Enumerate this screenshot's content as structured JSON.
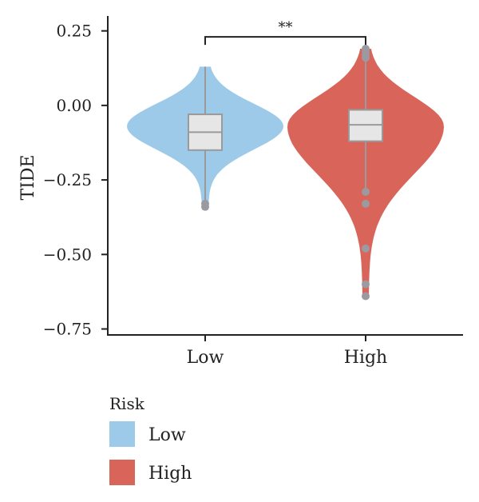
{
  "chart_data": {
    "type": "violin",
    "xlabel": "",
    "ylabel": "TIDE",
    "ylim": [
      -0.77,
      0.3
    ],
    "yticks": [
      0.25,
      0.0,
      -0.25,
      -0.5,
      -0.75
    ],
    "ytick_labels": [
      "0.25",
      "0.00",
      "−0.25",
      "−0.50",
      "−0.75"
    ],
    "categories": [
      "Low",
      "High"
    ],
    "groups": [
      {
        "name": "Low",
        "color": "#9ecae9",
        "box": {
          "q1": -0.15,
          "median": -0.09,
          "q3": -0.03,
          "whisker_low": -0.32,
          "whisker_high": 0.13
        },
        "outliers": [
          -0.33,
          -0.34
        ],
        "violin": {
          "ymin": -0.35,
          "ymax": 0.13,
          "max_density_at": -0.07
        }
      },
      {
        "name": "High",
        "color": "#d9645a",
        "box": {
          "q1": -0.12,
          "median": -0.065,
          "q3": -0.015,
          "whisker_low": -0.29,
          "whisker_high": 0.15
        },
        "outliers": [
          0.16,
          0.17,
          0.18,
          0.19,
          -0.29,
          -0.33,
          -0.48,
          -0.6,
          -0.64
        ],
        "violin": {
          "ymin": -0.64,
          "ymax": 0.19,
          "max_density_at": -0.07
        }
      }
    ],
    "significance": {
      "between": [
        "Low",
        "High"
      ],
      "label": "**",
      "y": 0.23
    },
    "legend": {
      "title": "Risk",
      "position": "bottom-left",
      "entries": [
        {
          "label": "Low",
          "color": "#9ecae9"
        },
        {
          "label": "High",
          "color": "#d9645a"
        }
      ]
    },
    "box_fill": "#e6e6e6",
    "box_stroke": "#9a9a9a",
    "outlier_color": "#9a9aa0"
  }
}
